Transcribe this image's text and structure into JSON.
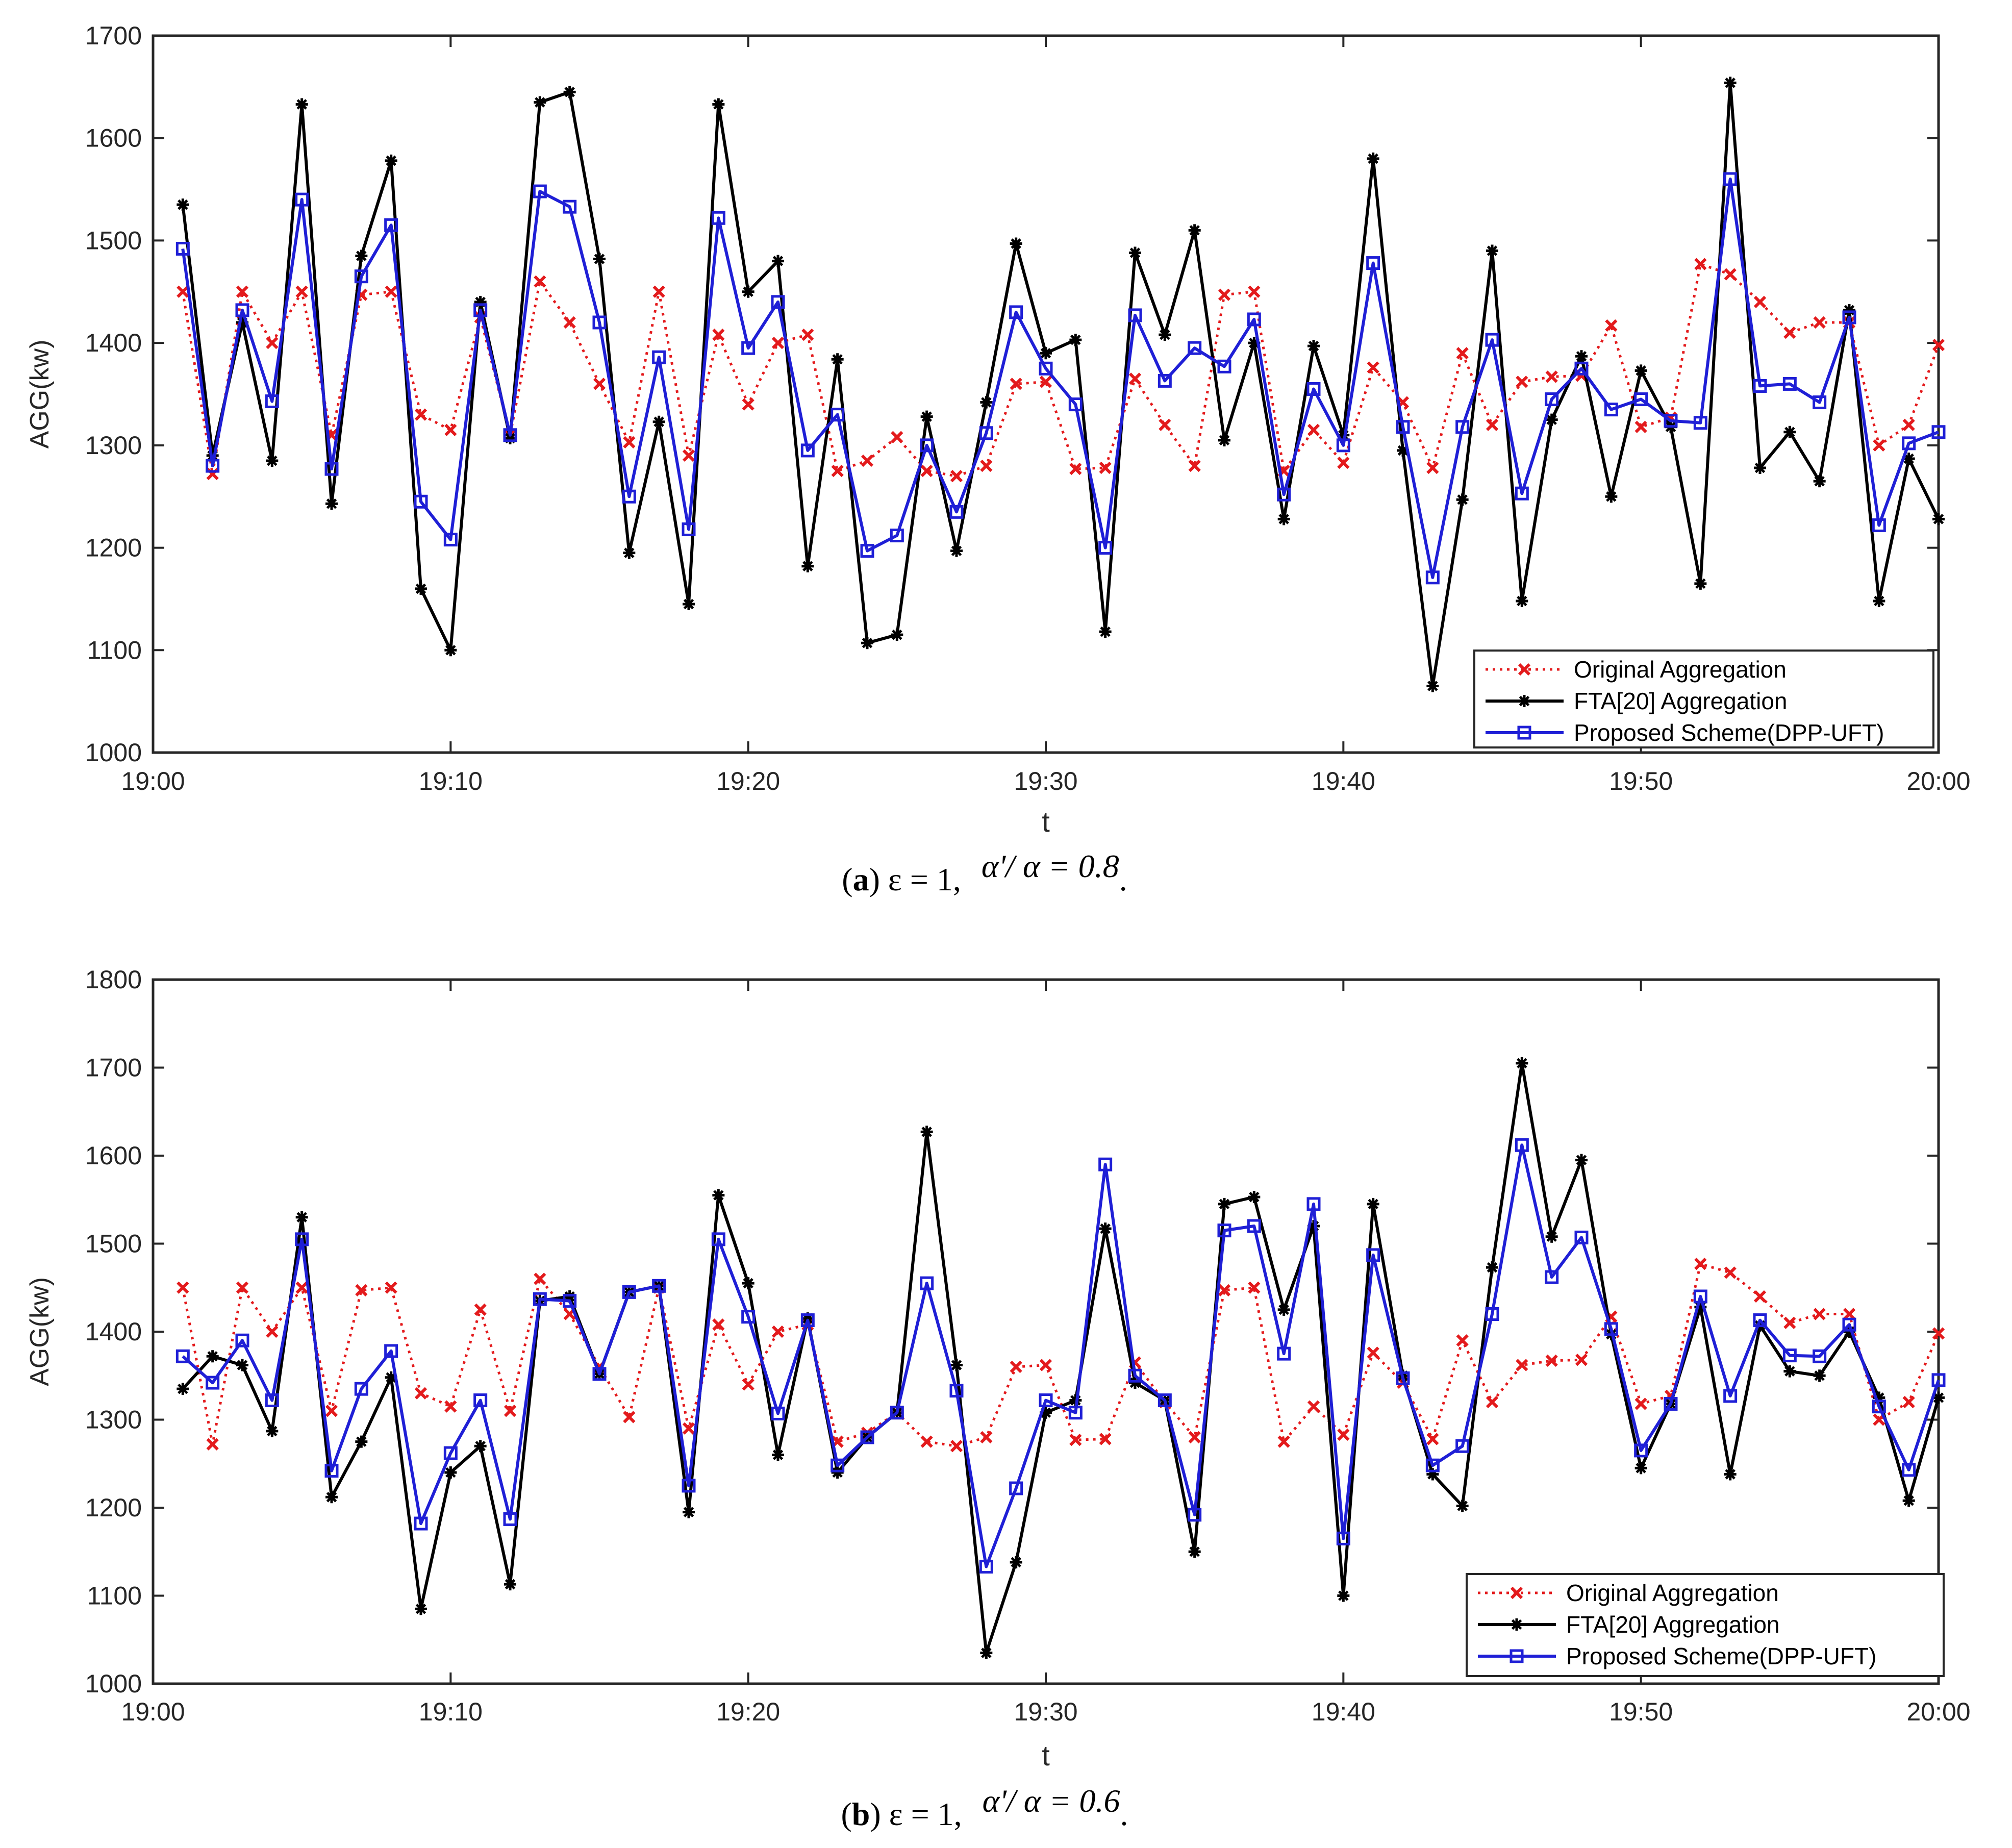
{
  "colors": {
    "original": "#e31a1c",
    "fta": "#000000",
    "proposed": "#1f1fd6",
    "axis": "#262626"
  },
  "chart_data": [
    {
      "type": "line",
      "panel": "a",
      "ylabel": "AGG(kw)",
      "xlabel": "t",
      "ylim": [
        1000,
        1700
      ],
      "yticks": [
        "1000",
        "1100",
        "1200",
        "1300",
        "1400",
        "1500",
        "1600",
        "1700"
      ],
      "xlim": [
        0,
        60
      ],
      "xticks": [
        "19:00",
        "19:10",
        "19:20",
        "19:30",
        "19:40",
        "19:50",
        "20:00"
      ],
      "legend_position": "bottom-right",
      "x": [
        1,
        2,
        3,
        4,
        5,
        6,
        7,
        8,
        9,
        10,
        11,
        12,
        13,
        14,
        15,
        16,
        17,
        18,
        19,
        20,
        21,
        22,
        23,
        24,
        25,
        26,
        27,
        28,
        29,
        30,
        31,
        32,
        33,
        34,
        35,
        36,
        37,
        38,
        39,
        40,
        41,
        42,
        43,
        44,
        45,
        46,
        47,
        48,
        49,
        50,
        51,
        52,
        53,
        54,
        55,
        56,
        57,
        58,
        59,
        60
      ],
      "series": [
        {
          "name": "Original Aggregation",
          "key": "original",
          "values": [
            1450,
            1272,
            1450,
            1400,
            1450,
            1310,
            1447,
            1450,
            1330,
            1315,
            1425,
            1310,
            1460,
            1420,
            1360,
            1303,
            1450,
            1290,
            1408,
            1340,
            1400,
            1408,
            1275,
            1285,
            1308,
            1275,
            1270,
            1280,
            1360,
            1362,
            1277,
            1278,
            1365,
            1320,
            1280,
            1447,
            1450,
            1275,
            1315,
            1283,
            1376,
            1342,
            1278,
            1390,
            1320,
            1362,
            1367,
            1368,
            1417,
            1318,
            1327,
            1477,
            1467,
            1440,
            1410,
            1420,
            1420,
            1300,
            1320,
            1398
          ]
        },
        {
          "name": "FTA[20] Aggregation",
          "key": "fta",
          "values": [
            1535,
            1290,
            1420,
            1285,
            1633,
            1243,
            1485,
            1578,
            1160,
            1100,
            1440,
            1307,
            1635,
            1645,
            1482,
            1195,
            1323,
            1145,
            1633,
            1450,
            1480,
            1182,
            1384,
            1107,
            1115,
            1328,
            1197,
            1342,
            1497,
            1390,
            1403,
            1118,
            1488,
            1408,
            1510,
            1305,
            1400,
            1228,
            1397,
            1310,
            1580,
            1295,
            1065,
            1247,
            1490,
            1148,
            1325,
            1387,
            1250,
            1373,
            1318,
            1165,
            1654,
            1278,
            1313,
            1265,
            1432,
            1148,
            1287,
            1228
          ]
        },
        {
          "name": "Proposed Scheme(DPP-UFT)",
          "key": "proposed",
          "values": [
            1492,
            1280,
            1432,
            1343,
            1540,
            1277,
            1465,
            1515,
            1245,
            1208,
            1432,
            1310,
            1548,
            1533,
            1420,
            1250,
            1386,
            1218,
            1522,
            1395,
            1440,
            1295,
            1330,
            1197,
            1212,
            1300,
            1235,
            1312,
            1430,
            1375,
            1340,
            1200,
            1427,
            1363,
            1395,
            1377,
            1423,
            1252,
            1355,
            1300,
            1478,
            1318,
            1171,
            1318,
            1403,
            1253,
            1345,
            1375,
            1335,
            1345,
            1324,
            1322,
            1560,
            1358,
            1360,
            1342,
            1425,
            1222,
            1302,
            1313
          ]
        }
      ],
      "caption": {
        "letter": "a",
        "eps": "ε = 1,",
        "ratio": "α'/ α = 0.8",
        "dot": "."
      }
    },
    {
      "type": "line",
      "panel": "b",
      "ylabel": "AGG(kw)",
      "xlabel": "t",
      "ylim": [
        1000,
        1800
      ],
      "yticks": [
        "1000",
        "1100",
        "1200",
        "1300",
        "1400",
        "1500",
        "1600",
        "1700",
        "1800"
      ],
      "xlim": [
        0,
        60
      ],
      "xticks": [
        "19:00",
        "19:10",
        "19:20",
        "19:30",
        "19:40",
        "19:50",
        "20:00"
      ],
      "legend_position": "bottom-right",
      "x": [
        1,
        2,
        3,
        4,
        5,
        6,
        7,
        8,
        9,
        10,
        11,
        12,
        13,
        14,
        15,
        16,
        17,
        18,
        19,
        20,
        21,
        22,
        23,
        24,
        25,
        26,
        27,
        28,
        29,
        30,
        31,
        32,
        33,
        34,
        35,
        36,
        37,
        38,
        39,
        40,
        41,
        42,
        43,
        44,
        45,
        46,
        47,
        48,
        49,
        50,
        51,
        52,
        53,
        54,
        55,
        56,
        57,
        58,
        59,
        60
      ],
      "series": [
        {
          "name": "Original Aggregation",
          "key": "original",
          "values": [
            1450,
            1272,
            1450,
            1400,
            1450,
            1310,
            1447,
            1450,
            1330,
            1315,
            1425,
            1310,
            1460,
            1420,
            1360,
            1303,
            1450,
            1290,
            1408,
            1340,
            1400,
            1408,
            1275,
            1285,
            1308,
            1275,
            1270,
            1280,
            1360,
            1362,
            1277,
            1278,
            1365,
            1320,
            1280,
            1447,
            1450,
            1275,
            1315,
            1283,
            1376,
            1342,
            1278,
            1390,
            1320,
            1362,
            1367,
            1368,
            1417,
            1318,
            1327,
            1477,
            1467,
            1440,
            1410,
            1420,
            1420,
            1300,
            1320,
            1398
          ]
        },
        {
          "name": "FTA[20] Aggregation",
          "key": "fta",
          "values": [
            1335,
            1372,
            1362,
            1287,
            1530,
            1212,
            1275,
            1348,
            1085,
            1240,
            1270,
            1113,
            1435,
            1440,
            1352,
            1445,
            1452,
            1195,
            1555,
            1455,
            1260,
            1415,
            1240,
            1280,
            1308,
            1627,
            1362,
            1035,
            1138,
            1308,
            1322,
            1517,
            1342,
            1322,
            1150,
            1545,
            1553,
            1425,
            1520,
            1100,
            1545,
            1350,
            1238,
            1202,
            1473,
            1705,
            1508,
            1595,
            1397,
            1245,
            1318,
            1428,
            1238,
            1407,
            1355,
            1350,
            1400,
            1325,
            1208,
            1325
          ]
        },
        {
          "name": "Proposed Scheme(DPP-UFT)",
          "key": "proposed",
          "values": [
            1372,
            1342,
            1390,
            1322,
            1505,
            1242,
            1335,
            1378,
            1182,
            1262,
            1322,
            1187,
            1437,
            1435,
            1352,
            1445,
            1452,
            1225,
            1505,
            1417,
            1307,
            1413,
            1248,
            1280,
            1308,
            1455,
            1333,
            1133,
            1222,
            1322,
            1308,
            1590,
            1350,
            1322,
            1192,
            1515,
            1520,
            1375,
            1545,
            1165,
            1487,
            1347,
            1248,
            1270,
            1420,
            1612,
            1462,
            1507,
            1403,
            1265,
            1318,
            1440,
            1327,
            1413,
            1373,
            1372,
            1408,
            1315,
            1243,
            1345
          ]
        }
      ],
      "caption": {
        "letter": "b",
        "eps": "ε = 1,",
        "ratio": "α'/ α = 0.6",
        "dot": "."
      }
    }
  ]
}
